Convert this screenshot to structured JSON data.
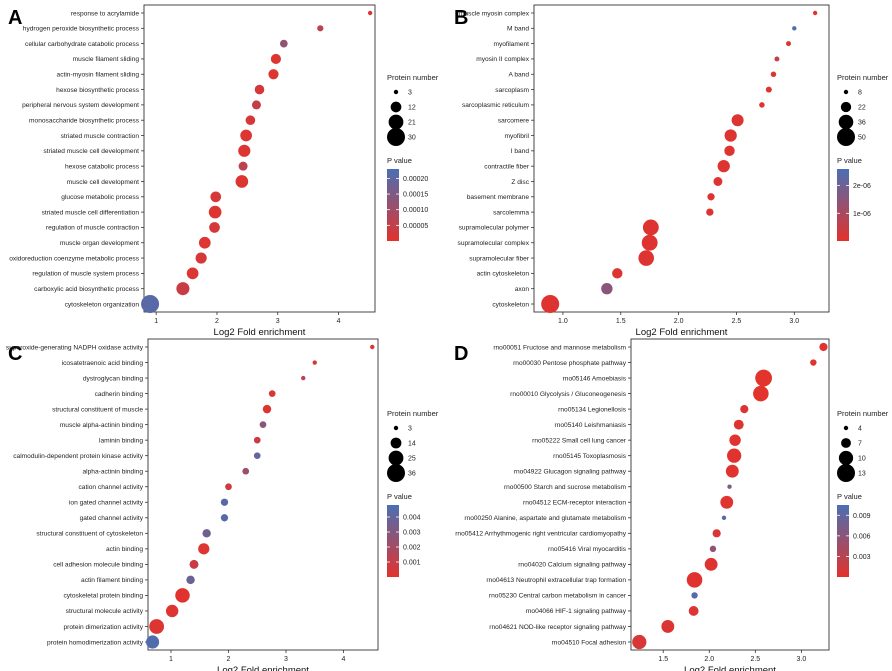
{
  "chart_data": [
    {
      "panel": "A",
      "type": "scatter",
      "xlabel": "Log2 Fold enrichment",
      "xlim": [
        0.8,
        4.6
      ],
      "xticks": [
        "1",
        "2",
        "3",
        "4"
      ],
      "size_legend": {
        "title": "Protein number",
        "values": [
          "3",
          "12",
          "21",
          "30"
        ]
      },
      "color_legend": {
        "title": "P value",
        "ticks": [
          "0.00020",
          "0.00015",
          "0.00010",
          "0.00005"
        ],
        "min": 0,
        "max": 0.00023
      },
      "terms": [
        {
          "label": "response to acrylamide",
          "x": 4.52,
          "count": 3,
          "p": 1e-05
        },
        {
          "label": "hydrogen peroxide biosynthetic process",
          "x": 3.7,
          "count": 5,
          "p": 6e-05
        },
        {
          "label": "cellular carbohydrate catabolic process",
          "x": 3.1,
          "count": 7,
          "p": 0.00012
        },
        {
          "label": "muscle filament sliding",
          "x": 2.97,
          "count": 11,
          "p": 1e-05
        },
        {
          "label": "actin-myosin filament sliding",
          "x": 2.93,
          "count": 11,
          "p": 1e-05
        },
        {
          "label": "hexose biosynthetic process",
          "x": 2.7,
          "count": 10,
          "p": 2e-05
        },
        {
          "label": "peripheral nervous system development",
          "x": 2.65,
          "count": 9,
          "p": 5e-05
        },
        {
          "label": "monosaccharide biosynthetic process",
          "x": 2.55,
          "count": 10,
          "p": 2e-05
        },
        {
          "label": "striated muscle contraction",
          "x": 2.48,
          "count": 14,
          "p": 1e-05
        },
        {
          "label": "striated muscle cell development",
          "x": 2.45,
          "count": 15,
          "p": 1e-05
        },
        {
          "label": "hexose catabolic process",
          "x": 2.43,
          "count": 9,
          "p": 6e-05
        },
        {
          "label": "muscle cell development",
          "x": 2.41,
          "count": 16,
          "p": 1e-05
        },
        {
          "label": "glucose metabolic process",
          "x": 1.98,
          "count": 12,
          "p": 2e-05
        },
        {
          "label": "striated muscle cell differentiation",
          "x": 1.97,
          "count": 16,
          "p": 1e-05
        },
        {
          "label": "regulation of muscle contraction",
          "x": 1.96,
          "count": 12,
          "p": 2e-05
        },
        {
          "label": "muscle organ development",
          "x": 1.8,
          "count": 14,
          "p": 1e-05
        },
        {
          "label": "oxidoreduction coenzyme metabolic process",
          "x": 1.74,
          "count": 13,
          "p": 2e-05
        },
        {
          "label": "regulation of muscle system process",
          "x": 1.6,
          "count": 14,
          "p": 1e-05
        },
        {
          "label": "carboxylic acid biosynthetic process",
          "x": 1.44,
          "count": 17,
          "p": 4e-05
        },
        {
          "label": "cytoskeleton organization",
          "x": 0.9,
          "count": 30,
          "p": 0.00021
        }
      ]
    },
    {
      "panel": "B",
      "type": "scatter",
      "xlabel": "Log2 Fold enrichment",
      "xlim": [
        0.75,
        3.3
      ],
      "xticks": [
        "1.0",
        "1.5",
        "2.0",
        "2.5",
        "3.0"
      ],
      "size_legend": {
        "title": "Protein number",
        "values": [
          "8",
          "22",
          "36",
          "50"
        ]
      },
      "color_legend": {
        "title": "P value",
        "ticks": [
          "2e-06",
          "1e-06"
        ],
        "min": 0,
        "max": 2.6e-06
      },
      "terms": [
        {
          "label": "muscle myosin complex",
          "x": 3.18,
          "count": 7,
          "p": 1e-07
        },
        {
          "label": "M band",
          "x": 3.0,
          "count": 5,
          "p": 2.5e-06
        },
        {
          "label": "myofilament",
          "x": 2.95,
          "count": 9,
          "p": 1e-07
        },
        {
          "label": "myosin II complex",
          "x": 2.85,
          "count": 9,
          "p": 6e-07
        },
        {
          "label": "A band",
          "x": 2.82,
          "count": 10,
          "p": 1e-07
        },
        {
          "label": "sarcoplasm",
          "x": 2.78,
          "count": 11,
          "p": 1e-07
        },
        {
          "label": "sarcoplasmic reticulum",
          "x": 2.72,
          "count": 10,
          "p": 1e-07
        },
        {
          "label": "sarcomere",
          "x": 2.51,
          "count": 27,
          "p": 1e-07
        },
        {
          "label": "myofibril",
          "x": 2.45,
          "count": 28,
          "p": 1e-07
        },
        {
          "label": "I band",
          "x": 2.44,
          "count": 22,
          "p": 1e-07
        },
        {
          "label": "contractile fiber",
          "x": 2.39,
          "count": 28,
          "p": 1e-07
        },
        {
          "label": "Z disc",
          "x": 2.34,
          "count": 18,
          "p": 1e-07
        },
        {
          "label": "basement membrane",
          "x": 2.28,
          "count": 14,
          "p": 1e-07
        },
        {
          "label": "sarcolemma",
          "x": 2.27,
          "count": 14,
          "p": 1e-07
        },
        {
          "label": "supramolecular polymer",
          "x": 1.76,
          "count": 41,
          "p": 1e-07
        },
        {
          "label": "supramolecular complex",
          "x": 1.75,
          "count": 41,
          "p": 1e-07
        },
        {
          "label": "supramolecular fiber",
          "x": 1.72,
          "count": 40,
          "p": 1e-07
        },
        {
          "label": "actin cytoskeleton",
          "x": 1.47,
          "count": 22,
          "p": 1e-07
        },
        {
          "label": "axon",
          "x": 1.38,
          "count": 25,
          "p": 1.5e-06
        },
        {
          "label": "cytoskeleton",
          "x": 0.89,
          "count": 50,
          "p": 1e-07
        }
      ]
    },
    {
      "panel": "C",
      "type": "scatter",
      "xlabel": "Log2 Fold enrichment",
      "xlim": [
        0.6,
        4.6
      ],
      "xticks": [
        "1",
        "2",
        "3",
        "4"
      ],
      "size_legend": {
        "title": "Protein number",
        "values": [
          "3",
          "14",
          "25",
          "36"
        ]
      },
      "color_legend": {
        "title": "P value",
        "ticks": [
          "0.004",
          "0.003",
          "0.002",
          "0.001"
        ],
        "min": 0,
        "max": 0.0048
      },
      "terms": [
        {
          "label": "superoxide-generating NADPH oxidase activity",
          "x": 4.5,
          "count": 3,
          "p": 0.0001
        },
        {
          "label": "icosatetraenoic acid binding",
          "x": 3.5,
          "count": 3,
          "p": 0.0003
        },
        {
          "label": "dystroglycan binding",
          "x": 3.3,
          "count": 3,
          "p": 0.0012
        },
        {
          "label": "cadherin binding",
          "x": 2.76,
          "count": 6,
          "p": 0.0004
        },
        {
          "label": "structural constituent of muscle",
          "x": 2.67,
          "count": 9,
          "p": 0.0002
        },
        {
          "label": "muscle alpha-actinin binding",
          "x": 2.6,
          "count": 6,
          "p": 0.0028
        },
        {
          "label": "laminin binding",
          "x": 2.5,
          "count": 6,
          "p": 0.0008
        },
        {
          "label": "calmodulin-dependent protein kinase activity",
          "x": 2.5,
          "count": 6,
          "p": 0.004
        },
        {
          "label": "alpha-actinin binding",
          "x": 2.3,
          "count": 6,
          "p": 0.0023
        },
        {
          "label": "cation channel activity",
          "x": 2.0,
          "count": 6,
          "p": 0.0006
        },
        {
          "label": "ion gated channel activity",
          "x": 1.93,
          "count": 7,
          "p": 0.0044
        },
        {
          "label": "gated channel activity",
          "x": 1.93,
          "count": 7,
          "p": 0.0044
        },
        {
          "label": "structural constituent of cytoskeleton",
          "x": 1.62,
          "count": 9,
          "p": 0.0036
        },
        {
          "label": "actin binding",
          "x": 1.57,
          "count": 15,
          "p": 0.0002
        },
        {
          "label": "cell adhesion molecule binding",
          "x": 1.4,
          "count": 10,
          "p": 0.0008
        },
        {
          "label": "actin filament binding",
          "x": 1.34,
          "count": 9,
          "p": 0.0038
        },
        {
          "label": "cytoskeletal protein binding",
          "x": 1.2,
          "count": 24,
          "p": 0.0001
        },
        {
          "label": "structural molecule activity",
          "x": 1.02,
          "count": 18,
          "p": 0.0002
        },
        {
          "label": "protein dimerization activity",
          "x": 0.75,
          "count": 25,
          "p": 0.0002
        },
        {
          "label": "protein homodimerization activity",
          "x": 0.68,
          "count": 20,
          "p": 0.0046
        }
      ]
    },
    {
      "panel": "D",
      "type": "scatter",
      "xlabel": "Log2 Fold enrichment",
      "xlim": [
        1.15,
        3.3
      ],
      "xticks": [
        "1.5",
        "2.0",
        "2.5",
        "3.0"
      ],
      "size_legend": {
        "title": "Protein number",
        "values": [
          "4",
          "7",
          "10",
          "13"
        ]
      },
      "color_legend": {
        "title": "P value",
        "ticks": [
          "0.009",
          "0.006",
          "0.003"
        ],
        "min": 0,
        "max": 0.0105
      },
      "terms": [
        {
          "label": "rno00051 Fructose and mannose metabolism",
          "x": 3.24,
          "count": 6,
          "p": 0.0002
        },
        {
          "label": "rno00030 Pentose phosphate pathway",
          "x": 3.13,
          "count": 5,
          "p": 0.0003
        },
        {
          "label": "rno05146 Amoebiasis",
          "x": 2.59,
          "count": 12,
          "p": 0.0001
        },
        {
          "label": "rno00010 Glycolysis / Gluconeogenesis",
          "x": 2.56,
          "count": 11,
          "p": 0.0001
        },
        {
          "label": "rno05134 Legionellosis",
          "x": 2.38,
          "count": 6,
          "p": 0.0006
        },
        {
          "label": "rno05140 Leishmaniasis",
          "x": 2.32,
          "count": 7,
          "p": 0.0004
        },
        {
          "label": "rno05222 Small cell lung cancer",
          "x": 2.28,
          "count": 8,
          "p": 0.0003
        },
        {
          "label": "rno05145 Toxoplasmosis",
          "x": 2.27,
          "count": 10,
          "p": 0.0002
        },
        {
          "label": "rno04922 Glucagon signaling pathway",
          "x": 2.25,
          "count": 9,
          "p": 0.0002
        },
        {
          "label": "rno00500 Starch and sucrose metabolism",
          "x": 2.22,
          "count": 3,
          "p": 0.007
        },
        {
          "label": "rno04512 ECM-receptor interaction",
          "x": 2.19,
          "count": 9,
          "p": 0.0003
        },
        {
          "label": "rno00250 Alanine, aspartate and glutamate metabolism",
          "x": 2.16,
          "count": 3,
          "p": 0.0095
        },
        {
          "label": "rno05412 Arrhythmogenic right ventricular cardiomyopathy",
          "x": 2.08,
          "count": 6,
          "p": 0.0006
        },
        {
          "label": "rno05416 Viral myocarditis",
          "x": 2.04,
          "count": 5,
          "p": 0.0055
        },
        {
          "label": "rno04020 Calcium signaling pathway",
          "x": 2.02,
          "count": 9,
          "p": 0.0004
        },
        {
          "label": "rno04613 Neutrophil extracellular trap formation",
          "x": 1.84,
          "count": 11,
          "p": 0.0002
        },
        {
          "label": "rno05230 Central carbon metabolism in cancer",
          "x": 1.84,
          "count": 5,
          "p": 0.0098
        },
        {
          "label": "rno04066 HIF-1 signaling pathway",
          "x": 1.83,
          "count": 7,
          "p": 0.0006
        },
        {
          "label": "rno04621 NOD-like receptor signaling pathway",
          "x": 1.55,
          "count": 9,
          "p": 0.0006
        },
        {
          "label": "rno04510 Focal adhesion",
          "x": 1.24,
          "count": 10,
          "p": 0.0008
        }
      ]
    }
  ]
}
